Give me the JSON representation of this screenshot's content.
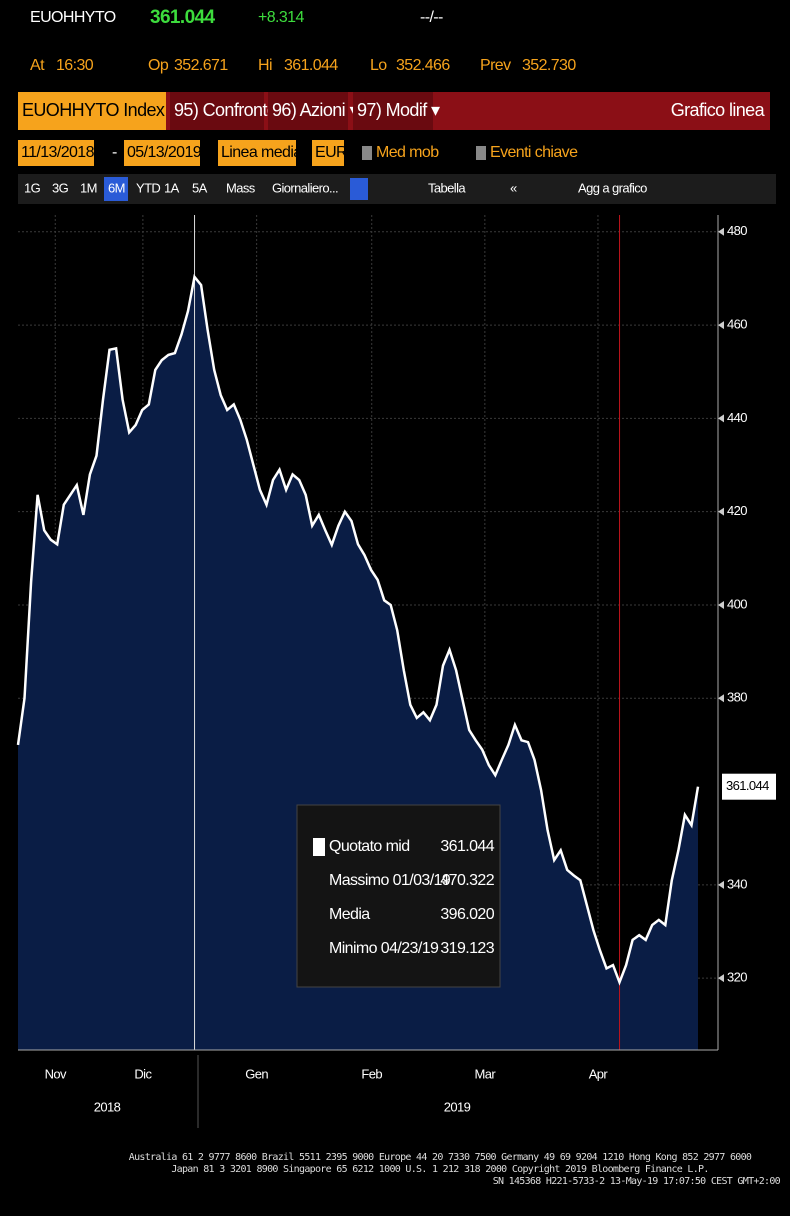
{
  "header": {
    "ticker": "EUOHHYTO",
    "last": "361.044",
    "change": "+8.314",
    "time_field": "--/--",
    "stats": [
      {
        "label": "At",
        "value": "16:30"
      },
      {
        "label": "Op",
        "value": "352.671"
      },
      {
        "label": "Hi",
        "value": "361.044"
      },
      {
        "label": "Lo",
        "value": "352.466"
      },
      {
        "label": "Prev",
        "value": "352.730"
      }
    ]
  },
  "toolbar": {
    "security": "EUOHHYTO Index",
    "buttons": [
      "95) Confronto",
      "96) Azioni ▾",
      "97) Modif ▾"
    ],
    "view": "Grafico linea",
    "start": "11/13/2018",
    "dash": "-",
    "end": "05/13/2019",
    "chart_type": "Linea media",
    "currency": "EUR",
    "moving_avg": "Med mob",
    "events": "Eventi chiave",
    "periods": [
      "1G",
      "3G",
      "1M",
      "6M",
      "YTD",
      "1A",
      "5A",
      "Mass"
    ],
    "frequency": "Giornaliero...",
    "table": "Tabella",
    "collapse": "«",
    "add": "Agg a grafico"
  },
  "chart_data": {
    "type": "area",
    "color": "#ffffff",
    "fill": "#0a1d45",
    "values": [
      370,
      380,
      405,
      423.6,
      416,
      414,
      413,
      421.5,
      423.6,
      425.7,
      419.3,
      428,
      432,
      444,
      454.7,
      455,
      444,
      437,
      438.6,
      441.8,
      443,
      450.4,
      452.5,
      453.6,
      454,
      458,
      463,
      470.322,
      468.6,
      459,
      450.4,
      445,
      441.8,
      443,
      439.7,
      435.4,
      430,
      424.7,
      421.5,
      426.8,
      429,
      424.7,
      428,
      426.8,
      423.6,
      417,
      419.3,
      416,
      412.9,
      417,
      420,
      418,
      413,
      410.7,
      407.5,
      405.4,
      401,
      400,
      394.6,
      386,
      378.6,
      375.8,
      377,
      375.3,
      378.6,
      387,
      390.4,
      386,
      379.6,
      373.2,
      371,
      369,
      365.7,
      363.5,
      366.8,
      370,
      374.3,
      371,
      370.6,
      366.8,
      360.3,
      351.7,
      345.3,
      347.4,
      343.2,
      342,
      341,
      335.7,
      330.3,
      326,
      322.1,
      322.8,
      319.123,
      322.8,
      328.2,
      329.2,
      328.2,
      331.4,
      332.5,
      331.4,
      341,
      347.4,
      355,
      352.8,
      361.044
    ],
    "xlim": [
      0,
      104
    ],
    "xticks": [
      {
        "value": 5.7,
        "label": "Nov"
      },
      {
        "value": 19.1,
        "label": "Dic"
      },
      {
        "value": 36.5,
        "label": "Gen"
      },
      {
        "value": 54.1,
        "label": "Feb"
      },
      {
        "value": 71.4,
        "label": "Mar"
      },
      {
        "value": 88.7,
        "label": "Apr"
      }
    ],
    "years": [
      "2018",
      "2019"
    ],
    "ylim": [
      304.6,
      483.6
    ],
    "yticks": [
      320,
      340,
      380,
      400,
      420,
      440,
      460,
      480
    ],
    "grid": true,
    "legend": [
      {
        "label": "Quotato mid",
        "value": "361.044"
      },
      {
        "label": "Massimo 01/03/19",
        "value": "470.322"
      },
      {
        "label": "Media",
        "value": "396.020"
      },
      {
        "label": "Minimo 04/23/19",
        "value": "319.123"
      }
    ]
  },
  "footer": [
    "Australia 61 2 9777 8600 Brazil 5511 2395 9000 Europe 44 20 7330 7500 Germany 49 69 9204 1210 Hong Kong 852 2977 6000",
    "Japan 81 3 3201 8900       Singapore 65 6212 1000       U.S. 1 212 318 2000          Copyright 2019 Bloomberg Finance L.P.",
    "SN 145368 H221-5733-2 13-May-19 17:07:50 CEST GMT+2:00"
  ]
}
